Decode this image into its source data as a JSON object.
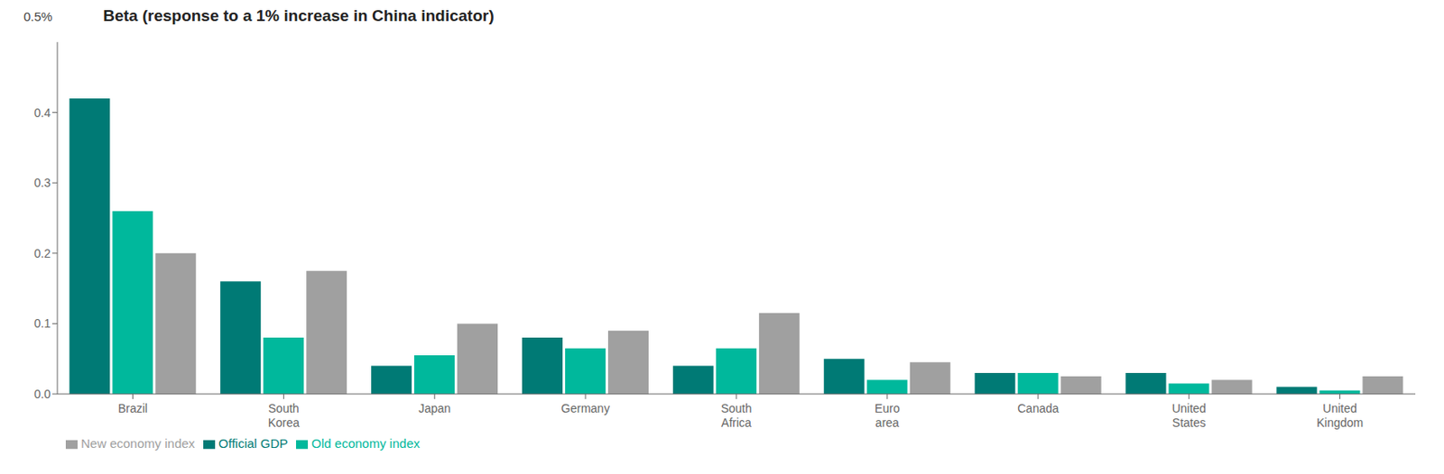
{
  "chart_data": {
    "type": "bar",
    "title": "Beta (response to a 1% increase in China indicator)",
    "annotations": [
      "0.5%"
    ],
    "categories": [
      "Brazil",
      "South\nKorea",
      "Japan",
      "Germany",
      "South\nAfrica",
      "Euro\narea",
      "Canada",
      "United\nStates",
      "United\nKingdom"
    ],
    "series": [
      {
        "name": "Official GDP",
        "color": "#007a75",
        "values": [
          0.42,
          0.16,
          0.04,
          0.08,
          0.04,
          0.05,
          0.03,
          0.03,
          0.01
        ]
      },
      {
        "name": "Old economy index",
        "color": "#00b89c",
        "values": [
          0.26,
          0.08,
          0.055,
          0.065,
          0.065,
          0.02,
          0.03,
          0.015,
          0.005
        ]
      },
      {
        "name": "New economy index",
        "color": "#a0a0a0",
        "values": [
          0.2,
          0.175,
          0.1,
          0.09,
          0.115,
          0.045,
          0.025,
          0.02,
          0.025
        ]
      }
    ],
    "ylim": [
      0,
      0.5
    ],
    "yticks": [
      {
        "value": 0,
        "label": "0.0"
      },
      0.1,
      0.2,
      0.3,
      0.4
    ],
    "grid": false,
    "legend": "bottom"
  }
}
